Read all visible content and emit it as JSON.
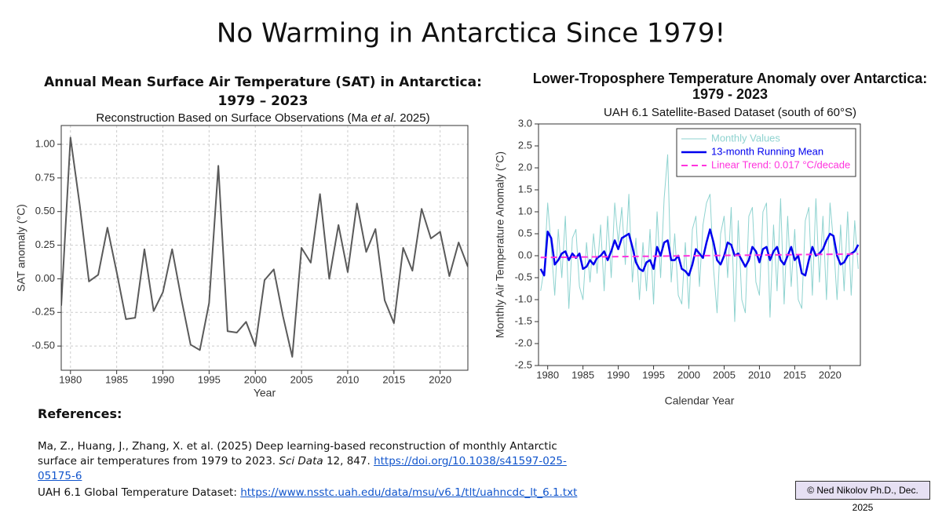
{
  "title": "No Warming in Antarctica Since 1979!",
  "references": {
    "heading": "References:",
    "items": [
      [
        "Ma, Z., Huang, J., Zhang, X. et al. (2025) Deep learning-based reconstruction of monthly Antarctic surface air temperatures from 1979 to 2023. ",
        "Sci Data",
        " 12, 847. ",
        "https://doi.org/10.1038/s41597-025-05175-6"
      ],
      [
        "UAH 6.1 Global Temperature Dataset: ",
        "https://www.nsstc.uah.edu/data/msu/v6.1/tlt/uahncdc_lt_6.1.txt"
      ]
    ]
  },
  "credit": "© Ned Nikolov Ph.D., Dec. 2025",
  "chart_data": [
    {
      "type": "line",
      "title": [
        "Annual Mean Surface Air Temperature (SAT) in Antarctica:",
        "1979 – 2023"
      ],
      "subtitle": [
        "Reconstruction Based on Surface Observations (Ma ",
        "et al",
        ". 2025)"
      ],
      "x_label": "Year",
      "y_label": "SAT anomaly (°C)",
      "x": [
        1979,
        1980,
        1981,
        1982,
        1983,
        1984,
        1985,
        1986,
        1987,
        1988,
        1989,
        1990,
        1991,
        1992,
        1993,
        1994,
        1995,
        1996,
        1997,
        1998,
        1999,
        2000,
        2001,
        2002,
        2003,
        2004,
        2005,
        2006,
        2007,
        2008,
        2009,
        2010,
        2011,
        2012,
        2013,
        2014,
        2015,
        2016,
        2017,
        2018,
        2019,
        2020,
        2021,
        2022,
        2023
      ],
      "values": [
        -0.2,
        1.05,
        0.55,
        -0.02,
        0.03,
        0.38,
        0.05,
        -0.3,
        -0.29,
        0.22,
        -0.24,
        -0.1,
        0.22,
        -0.15,
        -0.49,
        -0.53,
        -0.18,
        0.84,
        -0.39,
        -0.4,
        -0.32,
        -0.5,
        -0.01,
        0.07,
        -0.28,
        -0.58,
        0.23,
        0.12,
        0.63,
        0.0,
        0.4,
        0.05,
        0.56,
        0.2,
        0.37,
        -0.16,
        -0.33,
        0.23,
        0.06,
        0.52,
        0.3,
        0.35,
        0.02,
        0.27,
        0.09
      ],
      "color": "#5a5a5a",
      "xlim": [
        1979,
        2023
      ],
      "ylim": [
        -0.68,
        1.14
      ],
      "xticks": [
        1980,
        1985,
        1990,
        1995,
        2000,
        2005,
        2010,
        2015,
        2020
      ],
      "yticks": [
        {
          "value": -0.5,
          "label": "-0.50"
        },
        {
          "value": -0.25,
          "label": "-0.25"
        },
        {
          "value": 0,
          "label": "0.00"
        },
        {
          "value": 0.25,
          "label": "0.25"
        },
        {
          "value": 0.5,
          "label": "0.50"
        },
        {
          "value": 0.75,
          "label": "0.75"
        },
        {
          "value": 1,
          "label": "1.00"
        }
      ],
      "grid": true
    },
    {
      "type": "line",
      "title": [
        "Lower-Troposphere Temperature Anomaly over Antarctica:",
        "1979 - 2023"
      ],
      "subtitle": "UAH 6.1 Satellite-Based Dataset (south of 60°S)",
      "x_label": "Calendar Year",
      "y_label": "Monthly Air Temperature Anomaly (°C)",
      "series": [
        {
          "name": "Monthly Values",
          "color": "#8fd3d0",
          "line_width": 1,
          "x": [
            1979,
            1979.5,
            1980,
            1980.5,
            1981,
            1981.5,
            1982,
            1982.5,
            1983,
            1983.5,
            1984,
            1984.5,
            1985,
            1985.5,
            1986,
            1986.5,
            1987,
            1987.5,
            1988,
            1988.5,
            1989,
            1989.5,
            1990,
            1990.5,
            1991,
            1991.5,
            1992,
            1992.5,
            1993,
            1993.5,
            1994,
            1994.5,
            1995,
            1995.5,
            1996,
            1996.5,
            1997,
            1997.5,
            1998,
            1998.5,
            1999,
            1999.5,
            2000,
            2000.5,
            2001,
            2001.5,
            2002,
            2002.5,
            2003,
            2003.5,
            2004,
            2004.5,
            2005,
            2005.5,
            2006,
            2006.5,
            2007,
            2007.5,
            2008,
            2008.5,
            2009,
            2009.5,
            2010,
            2010.5,
            2011,
            2011.5,
            2012,
            2012.5,
            2013,
            2013.5,
            2014,
            2014.5,
            2015,
            2015.5,
            2016,
            2016.5,
            2017,
            2017.5,
            2018,
            2018.5,
            2019,
            2019.5,
            2020,
            2020.5,
            2021,
            2021.5,
            2022,
            2022.5,
            2023,
            2023.5,
            2024
          ],
          "values": [
            -0.8,
            -0.3,
            1.2,
            0.2,
            -0.9,
            0.6,
            -0.5,
            0.9,
            -1.2,
            0.4,
            0.6,
            -0.7,
            -1.0,
            0.3,
            -0.6,
            0.5,
            -0.4,
            0.7,
            -0.8,
            0.9,
            -0.5,
            1.2,
            0.3,
            1.1,
            -0.2,
            1.4,
            -0.6,
            0.4,
            -1.0,
            0.3,
            -0.8,
            0.6,
            -1.1,
            1.0,
            -0.5,
            1.3,
            2.3,
            -0.6,
            0.5,
            -0.9,
            -1.1,
            0.3,
            -1.2,
            0.6,
            0.9,
            -0.7,
            0.7,
            1.2,
            1.4,
            -0.3,
            -1.3,
            0.5,
            0.9,
            -0.5,
            1.1,
            -1.5,
            0.8,
            -1.0,
            -1.3,
            0.9,
            1.1,
            -0.6,
            -0.9,
            1.0,
            1.2,
            -1.4,
            0.7,
            -0.8,
            1.3,
            -1.1,
            0.9,
            -0.7,
            0.6,
            -1.0,
            -1.2,
            0.8,
            1.1,
            -0.9,
            1.3,
            -0.6,
            0.9,
            -1.0,
            1.2,
            0.3,
            -1.0,
            0.7,
            -0.8,
            1.0,
            -0.9,
            0.8,
            -0.3
          ]
        },
        {
          "name": "13-month Running Mean",
          "color": "#0000ee",
          "line_width": 2.5,
          "x": [
            1979,
            1979.5,
            1980,
            1980.5,
            1981,
            1981.5,
            1982,
            1982.5,
            1983,
            1983.5,
            1984,
            1984.5,
            1985,
            1985.5,
            1986,
            1986.5,
            1987,
            1987.5,
            1988,
            1988.5,
            1989,
            1989.5,
            1990,
            1990.5,
            1991,
            1991.5,
            1992,
            1992.5,
            1993,
            1993.5,
            1994,
            1994.5,
            1995,
            1995.5,
            1996,
            1996.5,
            1997,
            1997.5,
            1998,
            1998.5,
            1999,
            1999.5,
            2000,
            2000.5,
            2001,
            2001.5,
            2002,
            2002.5,
            2003,
            2003.5,
            2004,
            2004.5,
            2005,
            2005.5,
            2006,
            2006.5,
            2007,
            2007.5,
            2008,
            2008.5,
            2009,
            2009.5,
            2010,
            2010.5,
            2011,
            2011.5,
            2012,
            2012.5,
            2013,
            2013.5,
            2014,
            2014.5,
            2015,
            2015.5,
            2016,
            2016.5,
            2017,
            2017.5,
            2018,
            2018.5,
            2019,
            2019.5,
            2020,
            2020.5,
            2021,
            2021.5,
            2022,
            2022.5,
            2023,
            2023.5,
            2024
          ],
          "values": [
            -0.3,
            -0.45,
            0.55,
            0.4,
            -0.2,
            -0.1,
            0.05,
            0.1,
            -0.1,
            0.05,
            -0.05,
            0.05,
            -0.3,
            -0.25,
            -0.1,
            -0.2,
            -0.05,
            0.0,
            0.1,
            -0.1,
            0.1,
            0.35,
            0.15,
            0.4,
            0.45,
            0.5,
            0.2,
            -0.15,
            -0.3,
            -0.35,
            -0.15,
            -0.1,
            -0.3,
            0.2,
            0.0,
            0.3,
            0.35,
            -0.1,
            -0.1,
            0.0,
            -0.3,
            -0.35,
            -0.45,
            -0.2,
            0.15,
            0.05,
            -0.05,
            0.3,
            0.6,
            0.3,
            -0.1,
            -0.2,
            0.0,
            0.3,
            0.25,
            0.0,
            0.05,
            -0.1,
            -0.25,
            -0.1,
            0.2,
            0.1,
            -0.15,
            0.15,
            0.2,
            -0.1,
            0.1,
            0.2,
            -0.1,
            -0.2,
            0.0,
            0.2,
            -0.1,
            0.0,
            -0.4,
            -0.45,
            -0.1,
            0.2,
            0.0,
            0.05,
            0.15,
            0.35,
            0.5,
            0.45,
            0.0,
            -0.2,
            -0.15,
            0.0,
            0.05,
            0.1,
            0.25
          ]
        },
        {
          "name": "Linear Trend: 0.017 °C/decade",
          "color": "#ff33dd",
          "line_width": 2,
          "dashed": true,
          "x": [
            1979,
            2024
          ],
          "values": [
            -0.04,
            0.04
          ]
        }
      ],
      "xlim": [
        1978.7,
        2024.3
      ],
      "ylim": [
        -2.5,
        3.0
      ],
      "xticks": [
        1980,
        1985,
        1990,
        1995,
        2000,
        2005,
        2010,
        2015,
        2020
      ],
      "yticks": [
        -2.5,
        {
          "value": -2,
          "label": "-2.0"
        },
        -1.5,
        {
          "value": -1,
          "label": "-1.0"
        },
        -0.5,
        {
          "value": 0,
          "label": "0.0"
        },
        0.5,
        {
          "value": 1,
          "label": "1.0"
        },
        1.5,
        {
          "value": 2,
          "label": "2.0"
        },
        2.5,
        {
          "value": 3,
          "label": "3.0"
        }
      ],
      "grid": false,
      "legend": "upper right"
    }
  ]
}
